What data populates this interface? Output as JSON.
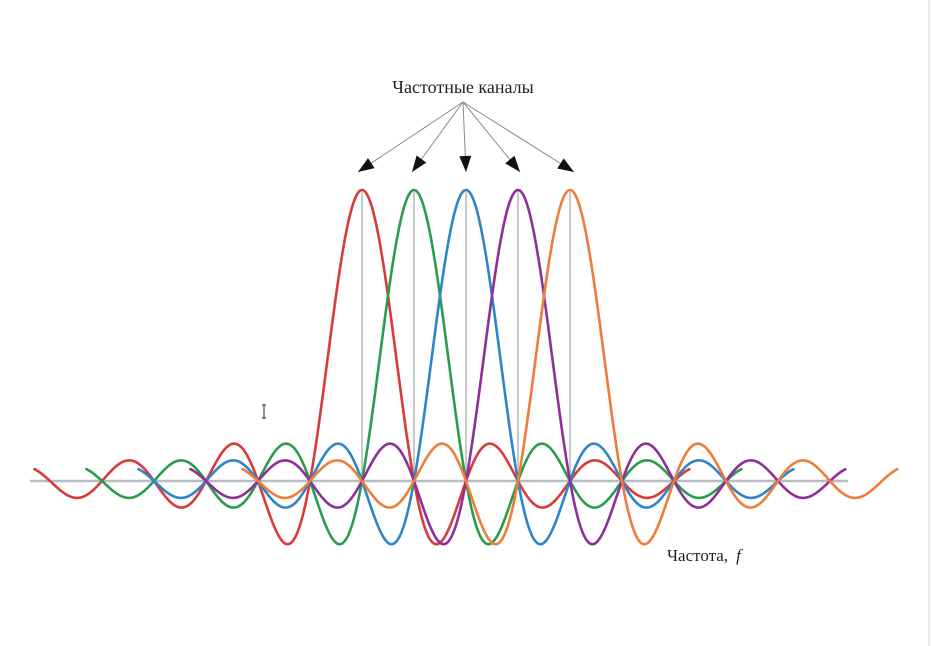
{
  "title": "Частотные каналы",
  "x_axis_label": "Частота,",
  "x_axis_symbol": "f",
  "channel_colors": [
    "#d93a3a",
    "#2a9c4f",
    "#2e86c8",
    "#8f2f99",
    "#ef7d3a"
  ],
  "chart_data": {
    "type": "line",
    "title": "Частотные каналы",
    "xlabel": "Частота, f",
    "ylabel": "",
    "series": [
      {
        "color": "#d93a3a",
        "peak_center": 0
      },
      {
        "color": "#2a9c4f",
        "peak_center": 1
      },
      {
        "color": "#2e86c8",
        "peak_center": 2
      },
      {
        "color": "#8f2f99",
        "peak_center": 3
      },
      {
        "color": "#ef7d3a",
        "peak_center": 4
      }
    ],
    "function": "sinc",
    "peak_value": 1,
    "grid": false
  }
}
